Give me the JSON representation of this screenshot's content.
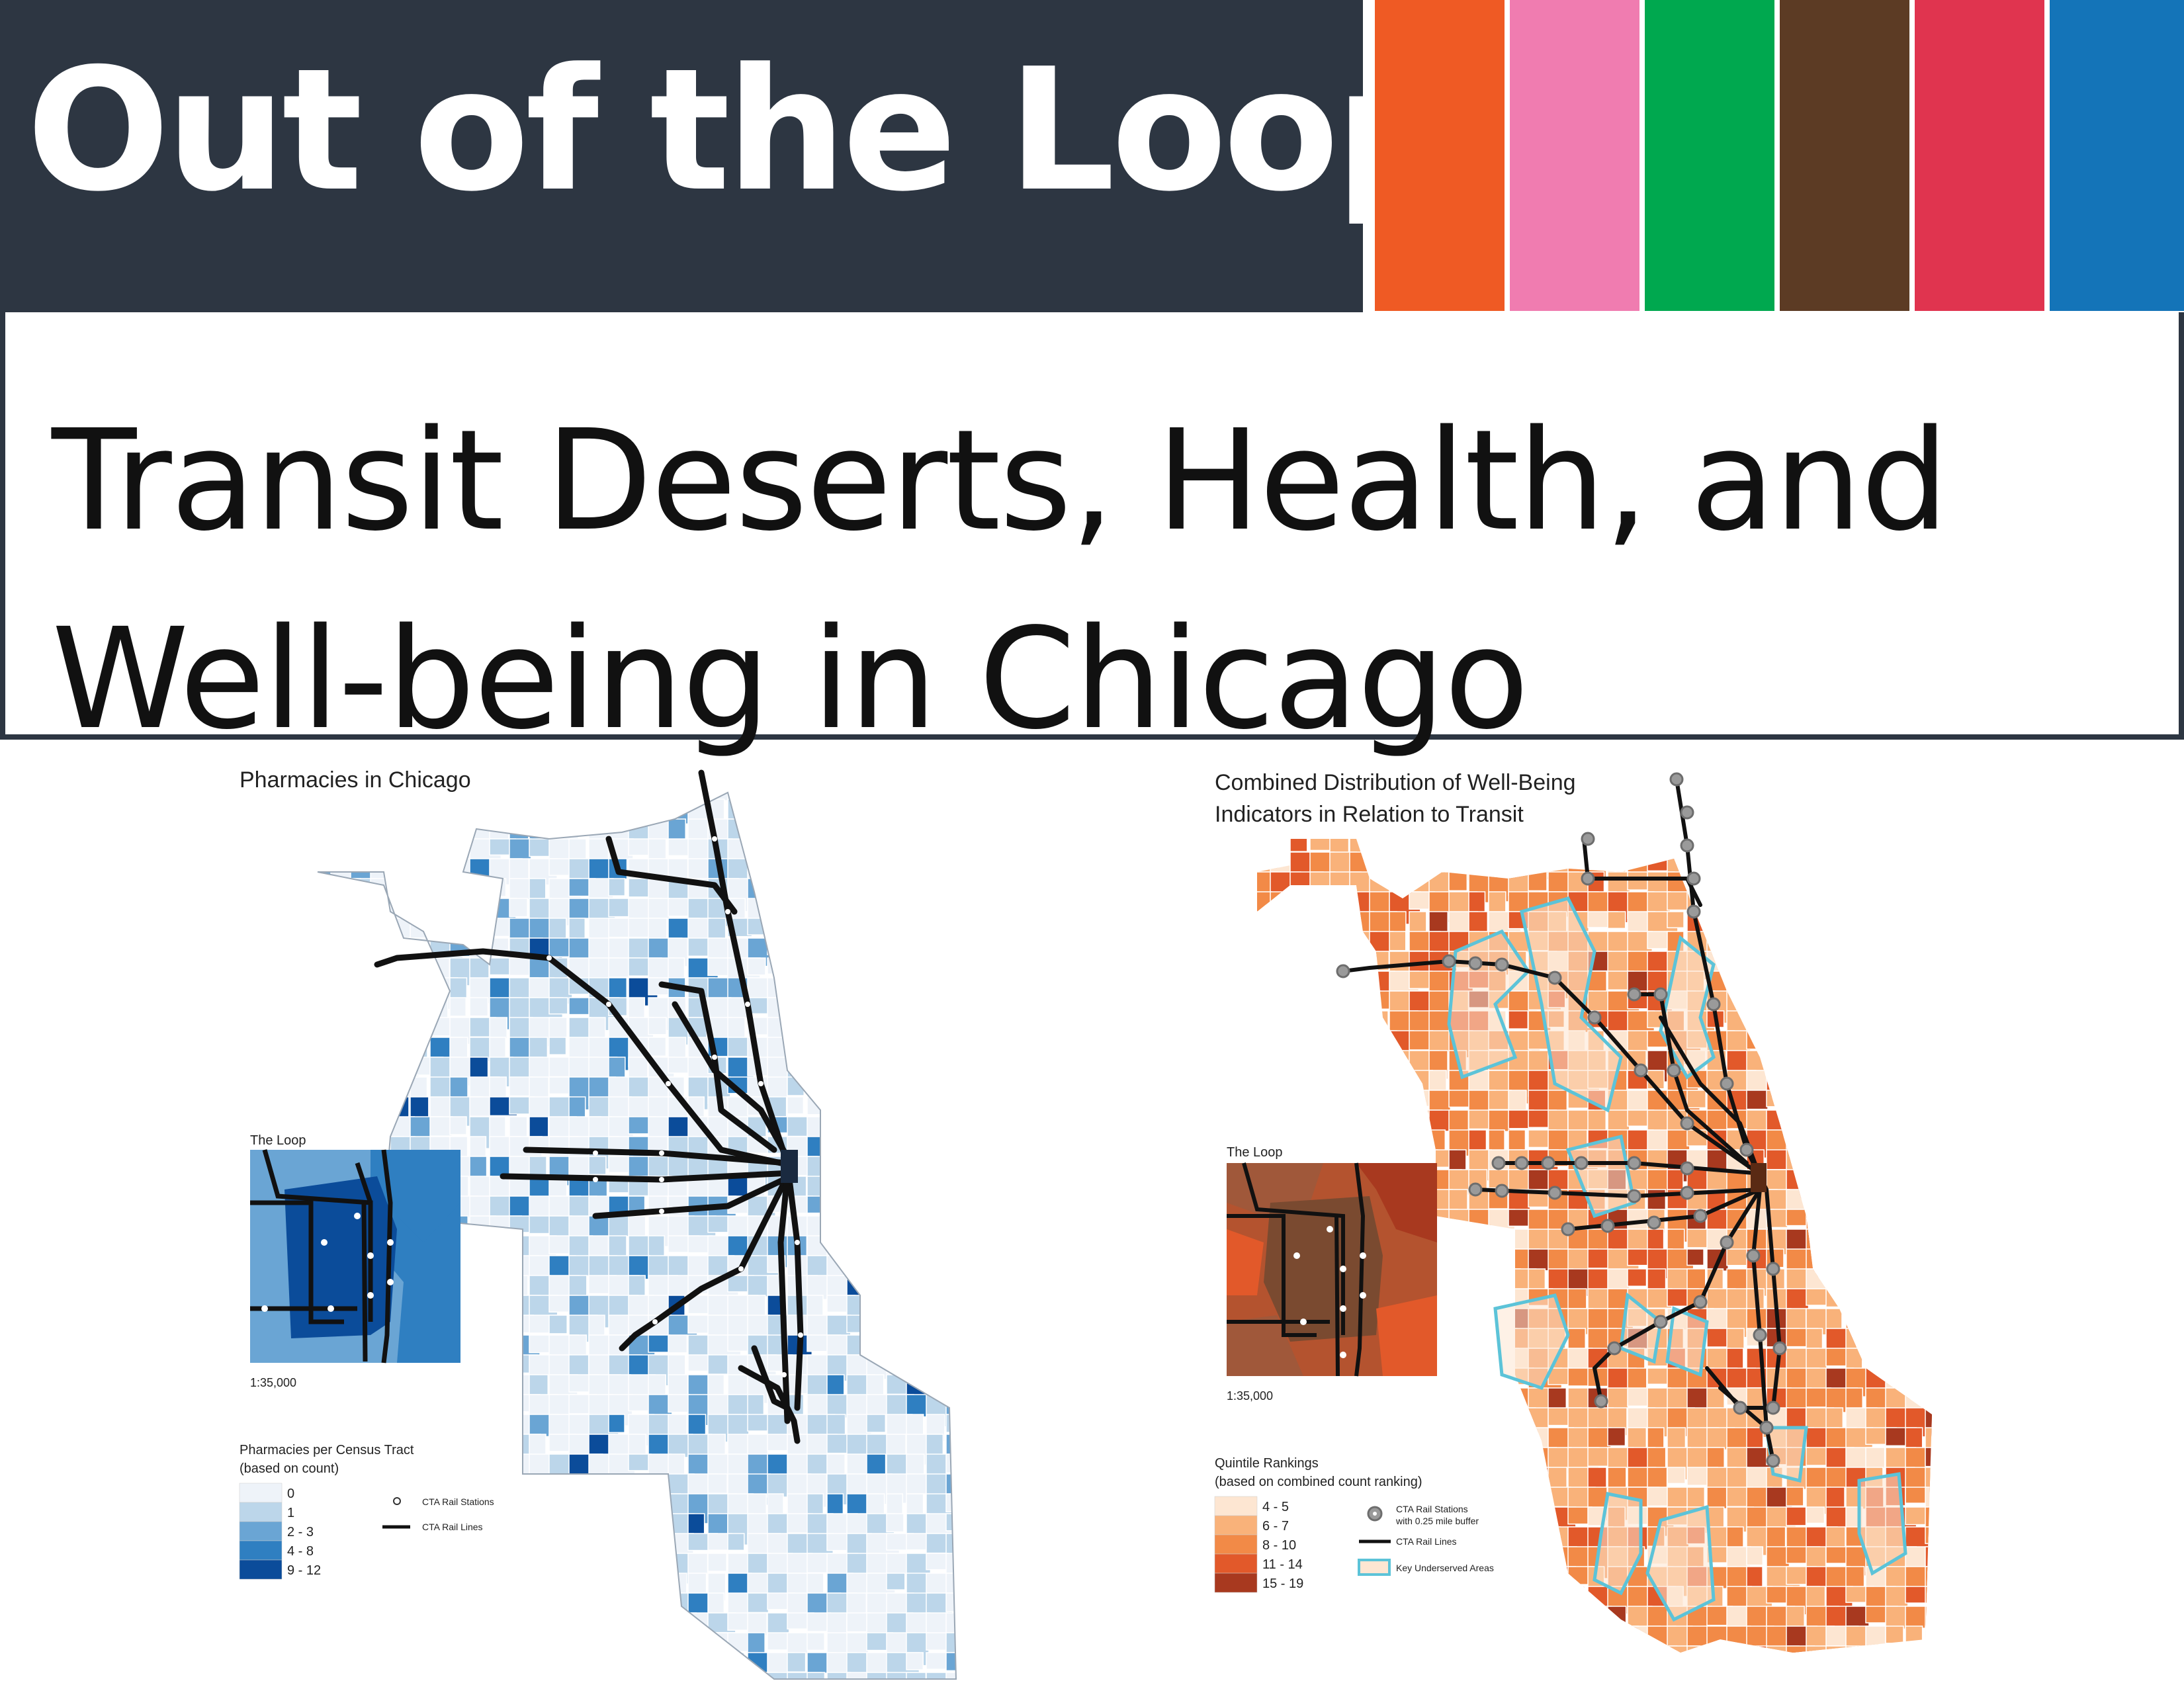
{
  "header": {
    "title": "Out of the Loop",
    "subtitle_line1": "Transit Deserts, Health, and",
    "subtitle_line2": "Well-being in Chicago",
    "background_color": "#2d3642",
    "line_colors": [
      "#ef5a24",
      "#f07cb0",
      "#00a84f",
      "#5c3b24",
      "#e0344f",
      "#1474b8"
    ]
  },
  "map_left": {
    "title": "Pharmacies in Chicago",
    "inset_title": "The Loop",
    "inset_scale": "1:35,000",
    "legend": {
      "title_line1": "Pharmacies per Census Tract",
      "title_line2": "(based on count)",
      "classes": [
        {
          "label": "0",
          "color": "#eef3f9"
        },
        {
          "label": "1",
          "color": "#bcd6ea"
        },
        {
          "label": "2 - 3",
          "color": "#6aa5d4"
        },
        {
          "label": "4 - 8",
          "color": "#2f7fc1"
        },
        {
          "label": "9 - 12",
          "color": "#0b4c9a"
        }
      ],
      "stations_label": "CTA Rail Stations",
      "lines_label": "CTA Rail Lines"
    }
  },
  "map_right": {
    "title_line1": "Combined Distribution of Well-Being",
    "title_line2": "Indicators in Relation to Transit",
    "inset_title": "The Loop",
    "inset_scale": "1:35,000",
    "legend": {
      "title_line1": "Quintile Rankings",
      "title_line2": "(based on combined count ranking)",
      "classes": [
        {
          "label": "4 - 5",
          "color": "#fde6d2"
        },
        {
          "label": "6 - 7",
          "color": "#f9b27a"
        },
        {
          "label": "8 - 10",
          "color": "#f28a47"
        },
        {
          "label": "11 - 14",
          "color": "#e2592a"
        },
        {
          "label": "15 - 19",
          "color": "#a8391f"
        }
      ],
      "stations_label_line1": "CTA Rail Stations",
      "stations_label_line2": "with 0.25 mile buffer",
      "lines_label": "CTA Rail Lines",
      "underserved_label": "Key Underserved Areas",
      "underserved_outline": "#5cc3d8"
    }
  }
}
